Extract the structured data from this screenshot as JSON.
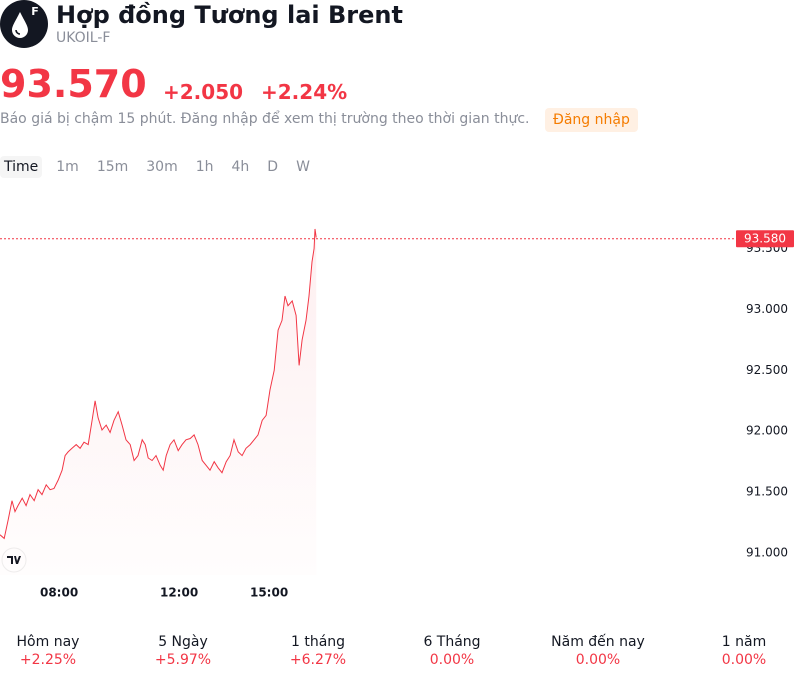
{
  "header": {
    "icon_letter": "F",
    "title": "Hợp đồng Tương lai Brent",
    "symbol": "UKOIL-F"
  },
  "quote": {
    "price": "93.570",
    "change": "+2.050",
    "change_pct": "+2.24%"
  },
  "notice": {
    "text": "Báo giá bị chậm 15 phút. Đăng nhập để xem thị trường theo thời gian thực.",
    "login": "Đăng nhập"
  },
  "intervals": [
    "Time",
    "1m",
    "15m",
    "30m",
    "1h",
    "4h",
    "D",
    "W"
  ],
  "chart_data": {
    "type": "line",
    "color": "#f23645",
    "x": [
      6.03,
      6.17,
      6.3,
      6.43,
      6.53,
      6.63,
      6.77,
      6.9,
      7.03,
      7.17,
      7.3,
      7.43,
      7.57,
      7.7,
      7.83,
      7.97,
      8.1,
      8.2,
      8.3,
      8.43,
      8.57,
      8.7,
      8.83,
      8.97,
      9.1,
      9.2,
      9.3,
      9.43,
      9.57,
      9.7,
      9.83,
      9.97,
      10.1,
      10.23,
      10.37,
      10.5,
      10.63,
      10.77,
      10.87,
      10.97,
      11.1,
      11.23,
      11.37,
      11.47,
      11.57,
      11.7,
      11.83,
      11.97,
      12.1,
      12.23,
      12.37,
      12.5,
      12.63,
      12.77,
      12.9,
      13.03,
      13.17,
      13.3,
      13.43,
      13.57,
      13.7,
      13.83,
      13.97,
      14.1,
      14.23,
      14.37,
      14.5,
      14.63,
      14.77,
      14.9,
      15.03,
      15.17,
      15.3,
      15.43,
      15.53,
      15.63,
      15.77,
      15.9,
      16.0,
      16.1,
      16.23,
      16.33,
      16.43,
      16.5,
      16.53,
      16.57
    ],
    "values": [
      91.15,
      91.12,
      91.27,
      91.43,
      91.34,
      91.39,
      91.45,
      91.39,
      91.48,
      91.43,
      91.52,
      91.48,
      91.56,
      91.52,
      91.53,
      91.6,
      91.68,
      91.8,
      91.83,
      91.86,
      91.89,
      91.86,
      91.91,
      91.89,
      92.09,
      92.25,
      92.11,
      92.01,
      92.05,
      91.99,
      92.09,
      92.16,
      92.05,
      91.93,
      91.89,
      91.76,
      91.8,
      91.93,
      91.89,
      91.78,
      91.76,
      91.8,
      91.72,
      91.68,
      91.8,
      91.89,
      91.93,
      91.84,
      91.89,
      91.93,
      91.94,
      91.97,
      91.89,
      91.76,
      91.72,
      91.68,
      91.75,
      91.7,
      91.66,
      91.75,
      91.8,
      91.93,
      91.83,
      91.8,
      91.86,
      91.89,
      91.93,
      91.97,
      92.09,
      92.13,
      92.34,
      92.5,
      92.83,
      92.91,
      93.11,
      93.03,
      93.07,
      92.95,
      92.54,
      92.75,
      92.91,
      93.11,
      93.39,
      93.5,
      93.66,
      93.59
    ],
    "xlim": [
      6.03,
      30.53
    ],
    "xticks": [
      {
        "value": 8,
        "label": "08:00"
      },
      {
        "value": 12,
        "label": "12:00"
      },
      {
        "value": 15,
        "label": "15:00"
      }
    ],
    "ylim": [
      90.82,
      93.98
    ],
    "yticks": [
      {
        "value": 91,
        "label": "91.000"
      },
      {
        "value": 91.5,
        "label": "91.500"
      },
      {
        "value": 92,
        "label": "92.000"
      },
      {
        "value": 92.5,
        "label": "92.500"
      },
      {
        "value": 93,
        "label": "93.000"
      },
      {
        "value": 93.5,
        "label": "93.500"
      }
    ],
    "last_price": {
      "value": 93.58,
      "label": "93.580"
    }
  },
  "periods": [
    {
      "label": "Hôm nay",
      "change": "+2.25%"
    },
    {
      "label": "5 Ngày",
      "change": "+5.97%"
    },
    {
      "label": "1 tháng",
      "change": "+6.27%"
    },
    {
      "label": "6 Tháng",
      "change": "0.00%"
    },
    {
      "label": "Năm đến nay",
      "change": "0.00%"
    },
    {
      "label": "1 năm",
      "change": "0.00%"
    }
  ]
}
